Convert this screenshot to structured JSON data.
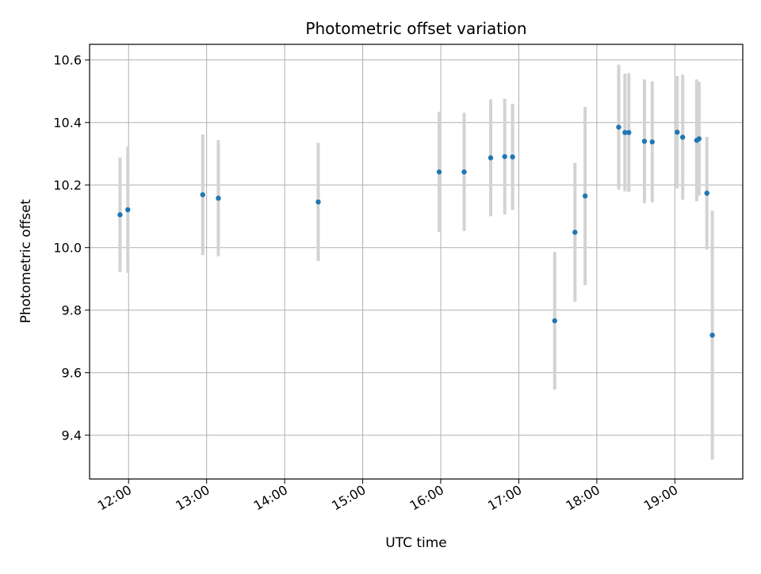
{
  "chart_data": {
    "type": "scatter",
    "title": "Photometric offset variation",
    "xlabel": "UTC time",
    "ylabel": "Photometric offset",
    "x_unit": "hours (UTC)",
    "xlim": [
      11.5,
      19.87
    ],
    "ylim": [
      9.26,
      10.65
    ],
    "grid": true,
    "legend": "none",
    "x_ticks": [
      {
        "value": 12,
        "label": "12:00"
      },
      {
        "value": 13,
        "label": "13:00"
      },
      {
        "value": 14,
        "label": "14:00"
      },
      {
        "value": 15,
        "label": "15:00"
      },
      {
        "value": 16,
        "label": "16:00"
      },
      {
        "value": 17,
        "label": "17:00"
      },
      {
        "value": 18,
        "label": "18:00"
      },
      {
        "value": 19,
        "label": "19:00"
      }
    ],
    "y_ticks": [
      {
        "value": 9.4,
        "label": "9.4"
      },
      {
        "value": 9.6,
        "label": "9.6"
      },
      {
        "value": 9.8,
        "label": "9.8"
      },
      {
        "value": 10.0,
        "label": "10.0"
      },
      {
        "value": 10.2,
        "label": "10.2"
      },
      {
        "value": 10.4,
        "label": "10.4"
      },
      {
        "value": 10.6,
        "label": "10.6"
      }
    ],
    "colors": {
      "marker": "#1f77b4",
      "errorbar": "#d3d3d3",
      "grid": "#b0b0b0"
    },
    "points": [
      {
        "x": 11.89,
        "y": 10.105,
        "err": 0.183
      },
      {
        "x": 11.99,
        "y": 10.121,
        "err": 0.202
      },
      {
        "x": 12.95,
        "y": 10.169,
        "err": 0.193
      },
      {
        "x": 13.15,
        "y": 10.158,
        "err": 0.186
      },
      {
        "x": 14.43,
        "y": 10.146,
        "err": 0.189
      },
      {
        "x": 15.98,
        "y": 10.242,
        "err": 0.192
      },
      {
        "x": 16.3,
        "y": 10.242,
        "err": 0.189
      },
      {
        "x": 16.64,
        "y": 10.287,
        "err": 0.187
      },
      {
        "x": 16.82,
        "y": 10.291,
        "err": 0.185
      },
      {
        "x": 16.92,
        "y": 10.29,
        "err": 0.17
      },
      {
        "x": 17.46,
        "y": 9.766,
        "err": 0.22
      },
      {
        "x": 17.72,
        "y": 10.049,
        "err": 0.222
      },
      {
        "x": 17.85,
        "y": 10.165,
        "err": 0.285
      },
      {
        "x": 18.28,
        "y": 10.385,
        "err": 0.2
      },
      {
        "x": 18.36,
        "y": 10.368,
        "err": 0.188
      },
      {
        "x": 18.41,
        "y": 10.368,
        "err": 0.19
      },
      {
        "x": 18.61,
        "y": 10.34,
        "err": 0.198
      },
      {
        "x": 18.71,
        "y": 10.338,
        "err": 0.193
      },
      {
        "x": 19.03,
        "y": 10.369,
        "err": 0.18
      },
      {
        "x": 19.1,
        "y": 10.353,
        "err": 0.2
      },
      {
        "x": 19.28,
        "y": 10.343,
        "err": 0.195
      },
      {
        "x": 19.31,
        "y": 10.348,
        "err": 0.182
      },
      {
        "x": 19.41,
        "y": 10.174,
        "err": 0.18
      },
      {
        "x": 19.48,
        "y": 9.72,
        "err": 0.398
      }
    ]
  }
}
